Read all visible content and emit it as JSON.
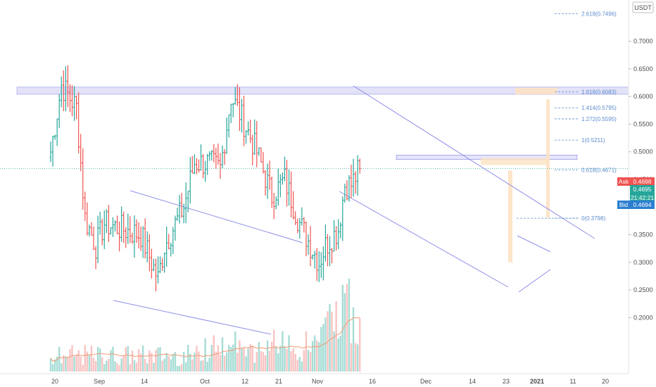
{
  "currency_label": "USDT",
  "colors": {
    "up": "#26a69a",
    "down": "#ef5350",
    "vol_up": "#a6dcd5",
    "vol_down": "#f8c4c3",
    "trend": "#8f8fe8",
    "fib": "#5b8ccc",
    "ma": "#f09a73",
    "ask": "#ef5350",
    "bid": "#2c7fd1",
    "price_line": "#26a69a"
  },
  "y_axis": {
    "ticks": [
      "0.7000",
      "0.6500",
      "0.6000",
      "0.5500",
      "0.5000",
      "0.4500",
      "0.4000",
      "0.3500",
      "0.3000",
      "0.2500",
      "0.2000"
    ],
    "range": [
      0.147,
      0.758
    ]
  },
  "x_axis": {
    "ticks": [
      "20",
      "Sep",
      "14",
      "Oct",
      "12",
      "21",
      "Nov",
      "16",
      "Dec",
      "14",
      "23",
      "2021",
      "11",
      "20"
    ]
  },
  "price_tags": {
    "ask_label": "Ask",
    "ask_value": "0.4698",
    "last_value": "0.4695",
    "countdown": "21:42:21",
    "bid_label": "Bid",
    "bid_value": "0.4694"
  },
  "fib_levels": [
    {
      "label": "2.618(0.7496)",
      "value": 0.7496
    },
    {
      "label": "1.618(0.6083)",
      "value": 0.6083
    },
    {
      "label": "1.414(0.5795)",
      "value": 0.5795
    },
    {
      "label": "1.272(0.5595)",
      "value": 0.5595
    },
    {
      "label": "1(0.5211)",
      "value": 0.5211
    },
    {
      "label": "0.618(0.4671)",
      "value": 0.4671
    },
    {
      "label": "0(0.3798)",
      "value": 0.3798
    }
  ],
  "chart_data": {
    "type": "ohlc",
    "title": "",
    "y_unit": "USDT",
    "y_range": [
      0.147,
      0.758
    ],
    "date_range": [
      "2020-08-20",
      "2021-01-11"
    ],
    "close_series": [
      {
        "date": "2020-08-20",
        "close": 0.5
      },
      {
        "date": "2020-08-25",
        "close": 0.62
      },
      {
        "date": "2020-09-01",
        "close": 0.58
      },
      {
        "date": "2020-09-05",
        "close": 0.38
      },
      {
        "date": "2020-09-10",
        "close": 0.33
      },
      {
        "date": "2020-09-14",
        "close": 0.37
      },
      {
        "date": "2020-10-01",
        "close": 0.35
      },
      {
        "date": "2020-10-09",
        "close": 0.27
      },
      {
        "date": "2020-10-12",
        "close": 0.33
      },
      {
        "date": "2020-10-21",
        "close": 0.4
      },
      {
        "date": "2020-10-26",
        "close": 0.48
      },
      {
        "date": "2020-11-01",
        "close": 0.48
      },
      {
        "date": "2020-11-07",
        "close": 0.47
      },
      {
        "date": "2020-11-12",
        "close": 0.6
      },
      {
        "date": "2020-11-16",
        "close": 0.57
      },
      {
        "date": "2020-11-24",
        "close": 0.5
      },
      {
        "date": "2020-12-01",
        "close": 0.42
      },
      {
        "date": "2020-12-07",
        "close": 0.45
      },
      {
        "date": "2020-12-14",
        "close": 0.37
      },
      {
        "date": "2020-12-23",
        "close": 0.3
      },
      {
        "date": "2020-12-26",
        "close": 0.33
      },
      {
        "date": "2021-01-01",
        "close": 0.36
      },
      {
        "date": "2021-01-04",
        "close": 0.44
      },
      {
        "date": "2021-01-07",
        "close": 0.44
      },
      {
        "date": "2021-01-11",
        "close": 0.4695
      }
    ],
    "fib_extension": {
      "0": 0.3798,
      "0.618": 0.4671,
      "1": 0.5211,
      "1.272": 0.5595,
      "1.414": 0.5795,
      "1.618": 0.6083,
      "2.618": 0.7496
    },
    "last_price": 0.4695,
    "ask": 0.4698,
    "bid": 0.4694,
    "legend": "none"
  }
}
